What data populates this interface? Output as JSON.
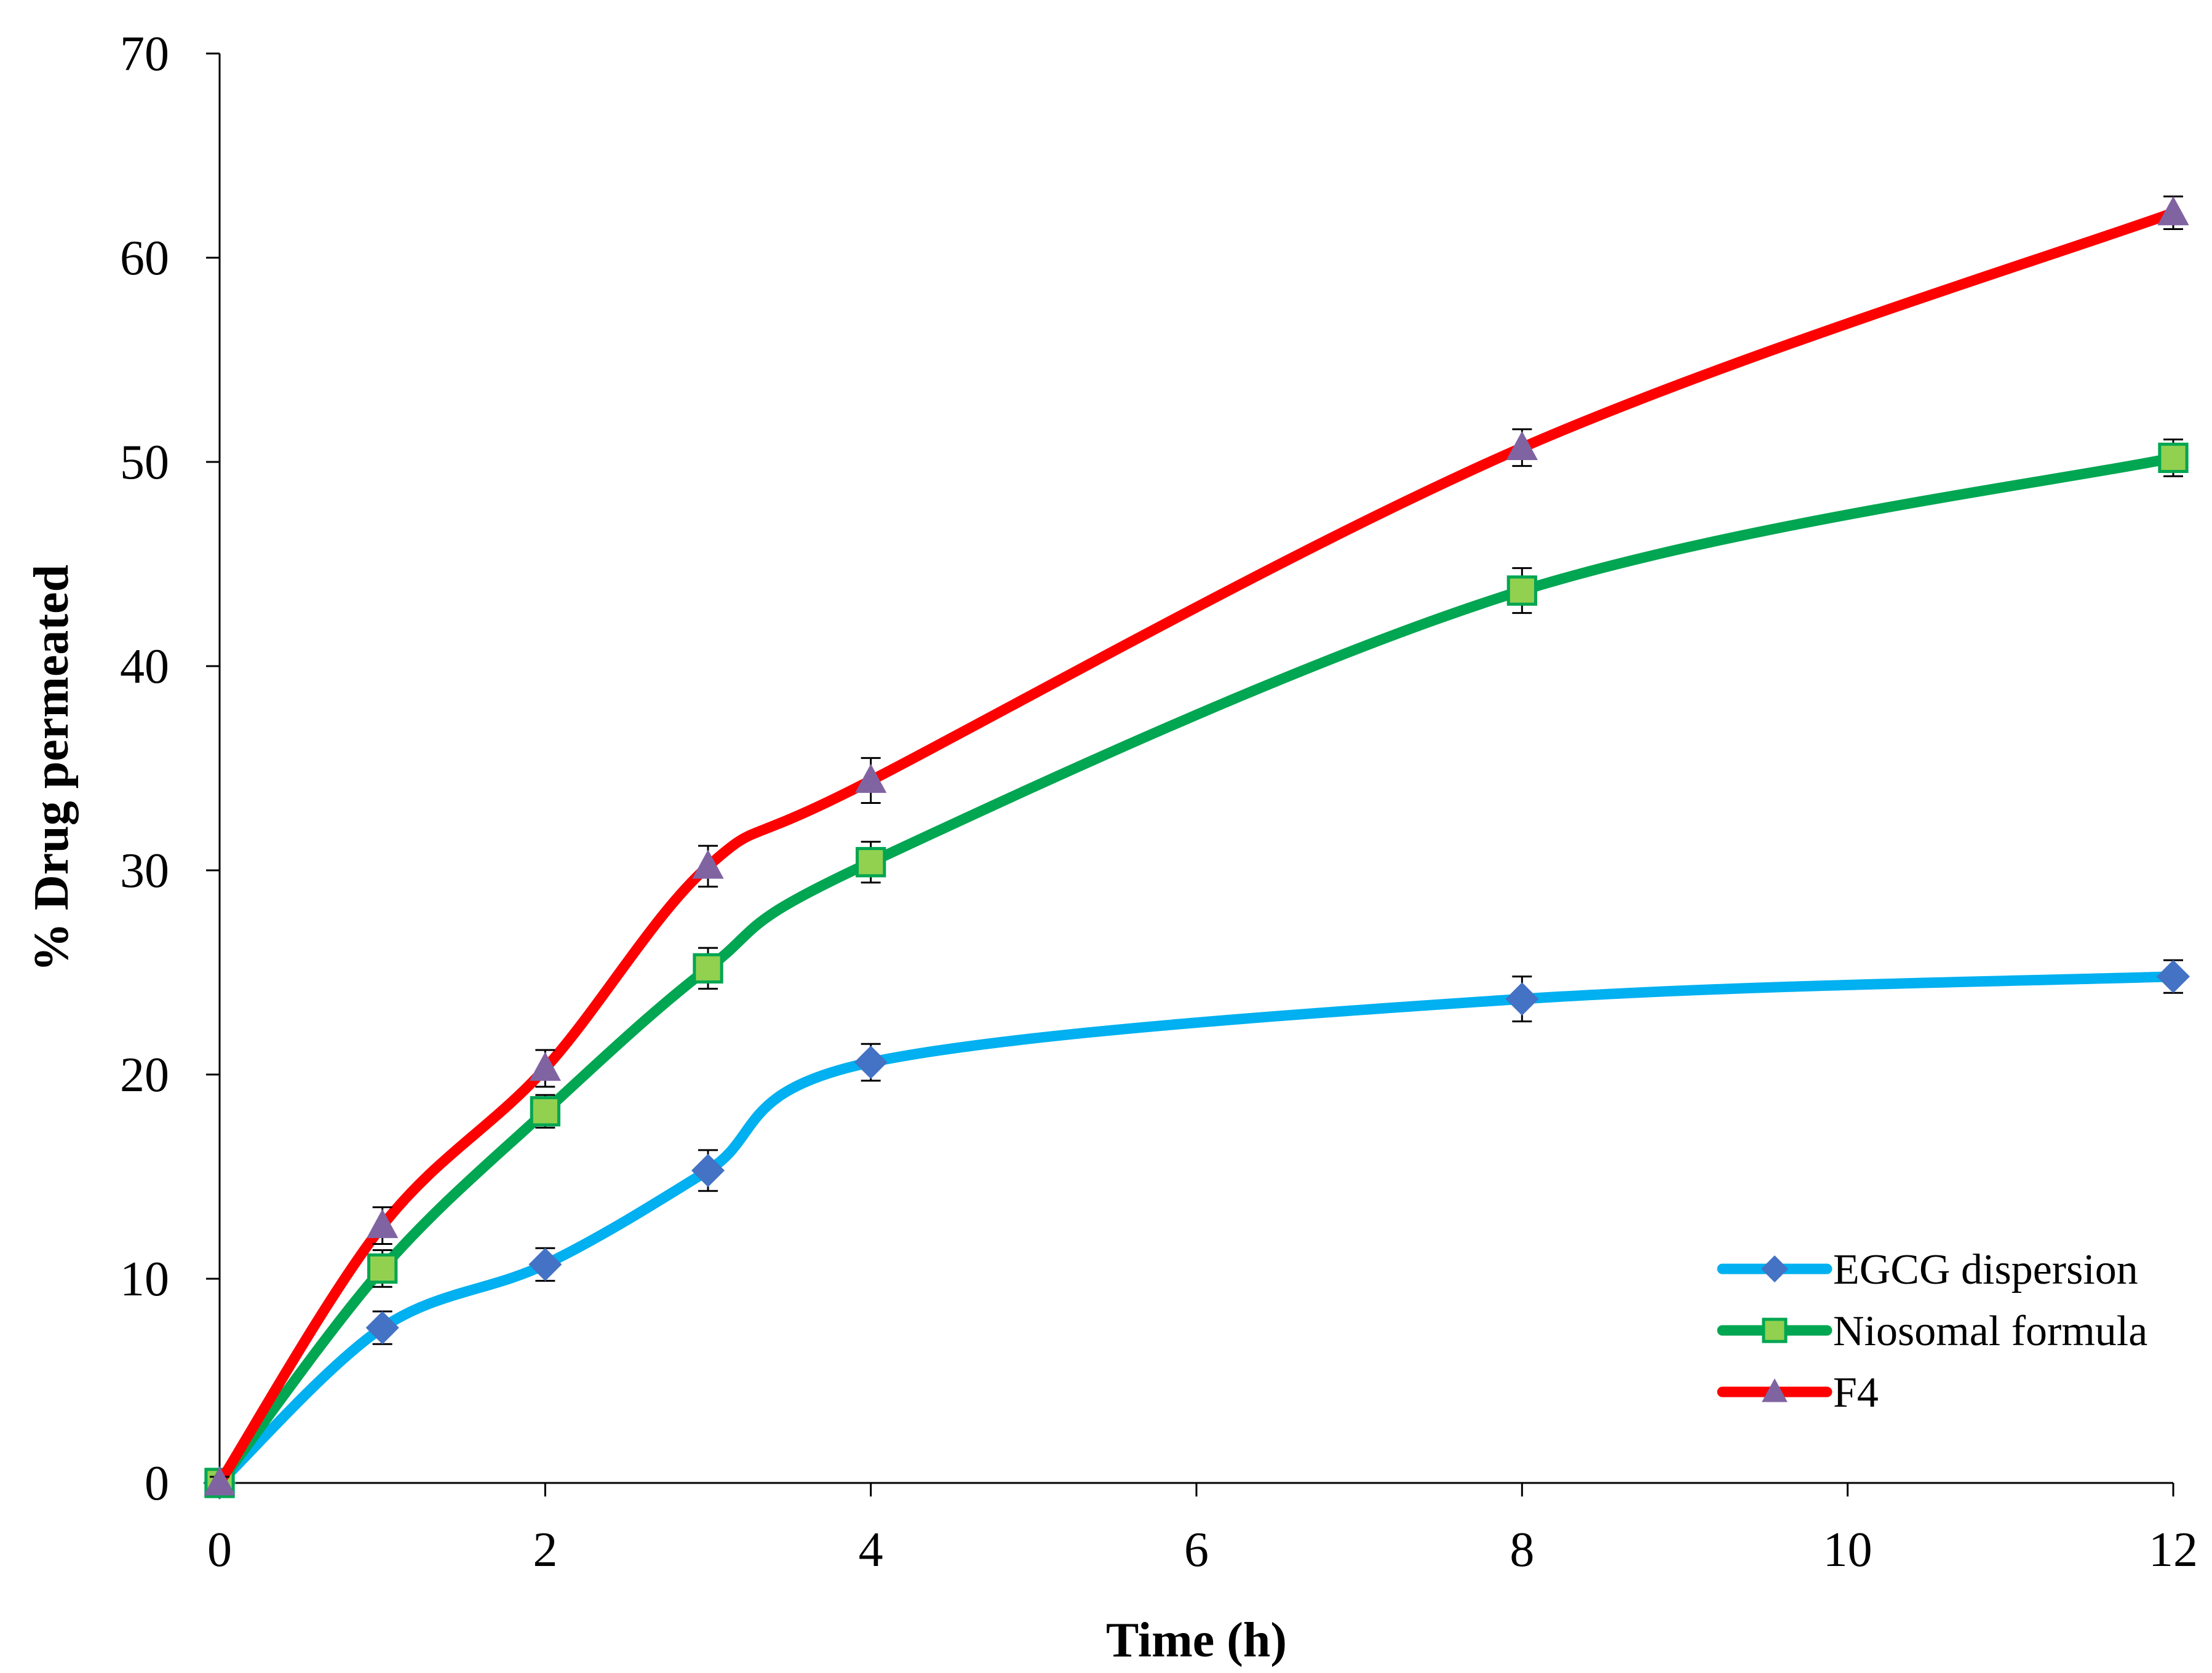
{
  "chart_data": {
    "type": "line",
    "title": "",
    "xlabel": "Time (h)",
    "ylabel": "% Drug permeated",
    "xlim": [
      0,
      12
    ],
    "ylim": [
      0,
      70
    ],
    "xticks": [
      0,
      2,
      4,
      6,
      8,
      10,
      12
    ],
    "yticks": [
      0,
      10,
      20,
      30,
      40,
      50,
      60,
      70
    ],
    "x": [
      0,
      1,
      2,
      3,
      4,
      8,
      12
    ],
    "legend_position": "bottom-right",
    "grid": false,
    "series": [
      {
        "name": "EGCG dispersion",
        "line_color": "#00B0F0",
        "marker": "diamond",
        "marker_color": "#4472C4",
        "values": [
          0,
          7.6,
          10.7,
          15.3,
          20.6,
          23.7,
          24.8
        ],
        "errors": [
          0.3,
          0.8,
          0.8,
          1.0,
          0.9,
          1.1,
          0.8
        ]
      },
      {
        "name": "Niosomal formula",
        "line_color": "#00A651",
        "marker": "square",
        "marker_color": "#92D050",
        "values": [
          0,
          10.5,
          18.2,
          25.2,
          30.4,
          43.7,
          50.2
        ],
        "errors": [
          0.3,
          0.9,
          0.8,
          1.0,
          1.0,
          1.1,
          0.9
        ]
      },
      {
        "name": "F4",
        "line_color": "#FF0000",
        "marker": "triangle",
        "marker_color": "#8064A2",
        "values": [
          0,
          12.6,
          20.3,
          30.2,
          34.4,
          50.7,
          62.2
        ],
        "errors": [
          0.3,
          0.9,
          0.9,
          1.0,
          1.1,
          0.9,
          0.8
        ]
      }
    ]
  }
}
